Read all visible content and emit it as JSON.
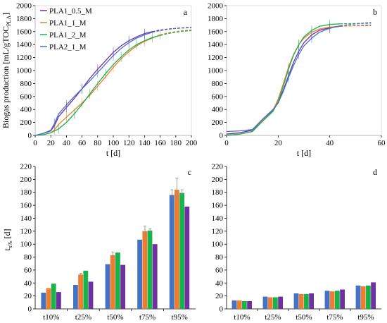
{
  "colors": {
    "blue": "#4472C4",
    "orange": "#ED7D31",
    "green": "#19B34C",
    "purple": "#7030A0"
  },
  "chart_data": [
    {
      "panel": "a",
      "type": "line",
      "title": "",
      "xlabel": "t [d]",
      "ylabel_main": "Biogas production [mL/gTOC",
      "ylabel_sub": "PLA",
      "ylabel_end": "]",
      "xlim": [
        0,
        200
      ],
      "ylim": [
        0,
        2000
      ],
      "xticks": [
        0,
        20,
        40,
        60,
        80,
        100,
        120,
        140,
        160,
        180,
        200
      ],
      "yticks": [
        0,
        200,
        400,
        600,
        800,
        1000,
        1200,
        1400,
        1600,
        1800,
        2000
      ],
      "legend_position": "top-left",
      "series": [
        {
          "name": "PLA1_0.5_M",
          "color": "#7030A0",
          "x": [
            0,
            10,
            20,
            25,
            30,
            40,
            50,
            60,
            70,
            80,
            90,
            100,
            110,
            120,
            130,
            140,
            150
          ],
          "y": [
            0,
            30,
            70,
            160,
            290,
            430,
            570,
            720,
            880,
            1020,
            1150,
            1280,
            1380,
            1460,
            1520,
            1570,
            1600
          ],
          "fit_x": [
            150,
            160,
            170,
            180,
            190,
            200
          ],
          "fit_y": [
            1600,
            1625,
            1640,
            1650,
            1660,
            1665
          ]
        },
        {
          "name": "PLA1_1_M",
          "color": "#ED7D31",
          "x": [
            0,
            10,
            20,
            25,
            30,
            40,
            50,
            60,
            70,
            80,
            90,
            100,
            110,
            120,
            130,
            140,
            150,
            160
          ],
          "y": [
            0,
            10,
            40,
            90,
            170,
            280,
            390,
            500,
            620,
            760,
            900,
            1050,
            1180,
            1290,
            1380,
            1450,
            1500,
            1550
          ],
          "fit_x": [
            160,
            170,
            180,
            190,
            200
          ],
          "fit_y": [
            1550,
            1580,
            1600,
            1615,
            1625
          ]
        },
        {
          "name": "PLA1_2_M",
          "color": "#19B34C",
          "x": [
            0,
            10,
            20,
            30,
            40,
            50,
            60,
            70,
            80,
            90,
            100,
            110,
            120,
            130,
            140,
            150,
            160
          ],
          "y": [
            0,
            10,
            40,
            100,
            200,
            330,
            480,
            640,
            800,
            950,
            1090,
            1210,
            1320,
            1400,
            1460,
            1510,
            1540
          ],
          "fit_x": [
            160,
            170,
            180,
            190,
            200
          ],
          "fit_y": [
            1540,
            1570,
            1590,
            1605,
            1615
          ]
        },
        {
          "name": "PLA2_1_M",
          "color": "#4472C4",
          "x": [
            0,
            10,
            20,
            25,
            30,
            40,
            50,
            60,
            70,
            80,
            90,
            100,
            110,
            120,
            130,
            140,
            150
          ],
          "y": [
            0,
            30,
            80,
            190,
            330,
            470,
            600,
            720,
            840,
            970,
            1100,
            1230,
            1340,
            1430,
            1500,
            1550,
            1590
          ],
          "fit_x": [
            150,
            160,
            170,
            180,
            190,
            200
          ],
          "fit_y": [
            1590,
            1615,
            1635,
            1648,
            1655,
            1660
          ]
        }
      ]
    },
    {
      "panel": "b",
      "type": "line",
      "title": "",
      "xlabel": "t [d]",
      "xlim": [
        0,
        60
      ],
      "ylim": [
        0,
        2000
      ],
      "xticks": [
        0,
        20,
        40,
        60
      ],
      "yticks": [
        0,
        200,
        400,
        600,
        800,
        1000,
        1200,
        1400,
        1600,
        1800,
        2000
      ],
      "series": [
        {
          "color": "#7030A0",
          "x": [
            0,
            5,
            10,
            14,
            18,
            20,
            22,
            24,
            26,
            28,
            30,
            33,
            36,
            40,
            44
          ],
          "y": [
            20,
            40,
            80,
            250,
            400,
            520,
            700,
            920,
            1130,
            1300,
            1430,
            1550,
            1620,
            1660,
            1680
          ],
          "fit_x": [
            44,
            50,
            56
          ],
          "fit_y": [
            1680,
            1695,
            1700
          ]
        },
        {
          "color": "#ED7D31",
          "x": [
            0,
            5,
            10,
            14,
            18,
            20,
            22,
            24,
            26,
            28,
            30,
            33,
            36,
            40,
            44
          ],
          "y": [
            0,
            20,
            60,
            230,
            390,
            560,
            800,
            1050,
            1250,
            1400,
            1500,
            1590,
            1640,
            1670,
            1685
          ],
          "fit_x": [
            44,
            50,
            56
          ],
          "fit_y": [
            1685,
            1690,
            1692
          ]
        },
        {
          "color": "#19B34C",
          "x": [
            0,
            5,
            10,
            14,
            18,
            20,
            22,
            24,
            26,
            28,
            30,
            33,
            36,
            40,
            44
          ],
          "y": [
            0,
            20,
            60,
            220,
            370,
            520,
            760,
            1020,
            1240,
            1400,
            1520,
            1620,
            1680,
            1710,
            1720
          ],
          "fit_x": [
            44,
            50,
            56
          ],
          "fit_y": [
            1720,
            1725,
            1728
          ]
        },
        {
          "color": "#4472C4",
          "x": [
            0,
            5,
            10,
            14,
            18,
            20,
            22,
            24,
            26,
            28,
            30,
            33,
            36,
            40,
            44
          ],
          "y": [
            60,
            70,
            90,
            250,
            390,
            500,
            680,
            890,
            1080,
            1250,
            1380,
            1500,
            1590,
            1650,
            1690
          ],
          "fit_x": [
            44,
            50,
            56
          ],
          "fit_y": [
            1690,
            1720,
            1740
          ]
        }
      ]
    },
    {
      "panel": "c",
      "type": "bar",
      "ylabel_main": "t",
      "ylabel_sub": "x%",
      "ylabel_end": " [d]",
      "ylim": [
        0,
        220
      ],
      "yticks": [
        0,
        20,
        40,
        60,
        80,
        100,
        120,
        140,
        160,
        180,
        200,
        220
      ],
      "categories": [
        "t10%",
        "t25%",
        "t50%",
        "t75%",
        "t95%"
      ],
      "series": [
        {
          "color": "#4472C4",
          "values": [
            25,
            37,
            69,
            107,
            176
          ],
          "errors": [
            0,
            0,
            0,
            0,
            8
          ]
        },
        {
          "color": "#ED7D31",
          "values": [
            32,
            53,
            83,
            120,
            184
          ],
          "errors": [
            0,
            2,
            5,
            8,
            18
          ]
        },
        {
          "color": "#19B34C",
          "values": [
            39,
            59,
            87,
            121,
            179
          ],
          "errors": [
            0,
            0,
            0,
            3,
            5
          ]
        },
        {
          "color": "#7030A0",
          "values": [
            26,
            42,
            68,
            100,
            158
          ],
          "errors": [
            0,
            0,
            0,
            0,
            0
          ]
        }
      ]
    },
    {
      "panel": "d",
      "type": "bar",
      "ylim": [
        0,
        220
      ],
      "yticks": [
        0,
        20,
        40,
        60,
        80,
        100,
        120,
        140,
        160,
        180,
        200,
        220
      ],
      "categories": [
        "t10%",
        "t25%",
        "t50%",
        "t75%",
        "t95%"
      ],
      "series": [
        {
          "color": "#4472C4",
          "values": [
            13,
            19,
            24,
            28,
            36
          ],
          "errors": [
            0,
            0,
            0,
            0,
            0
          ]
        },
        {
          "color": "#ED7D31",
          "values": [
            13,
            18,
            23,
            27,
            35
          ],
          "errors": [
            0,
            0,
            0,
            0,
            0
          ]
        },
        {
          "color": "#19B34C",
          "values": [
            12,
            18,
            23,
            28,
            36
          ],
          "errors": [
            0,
            0,
            0,
            0,
            0
          ]
        },
        {
          "color": "#7030A0",
          "values": [
            12,
            19,
            24,
            30,
            41
          ],
          "errors": [
            0,
            0,
            0,
            0,
            0
          ]
        }
      ]
    }
  ]
}
